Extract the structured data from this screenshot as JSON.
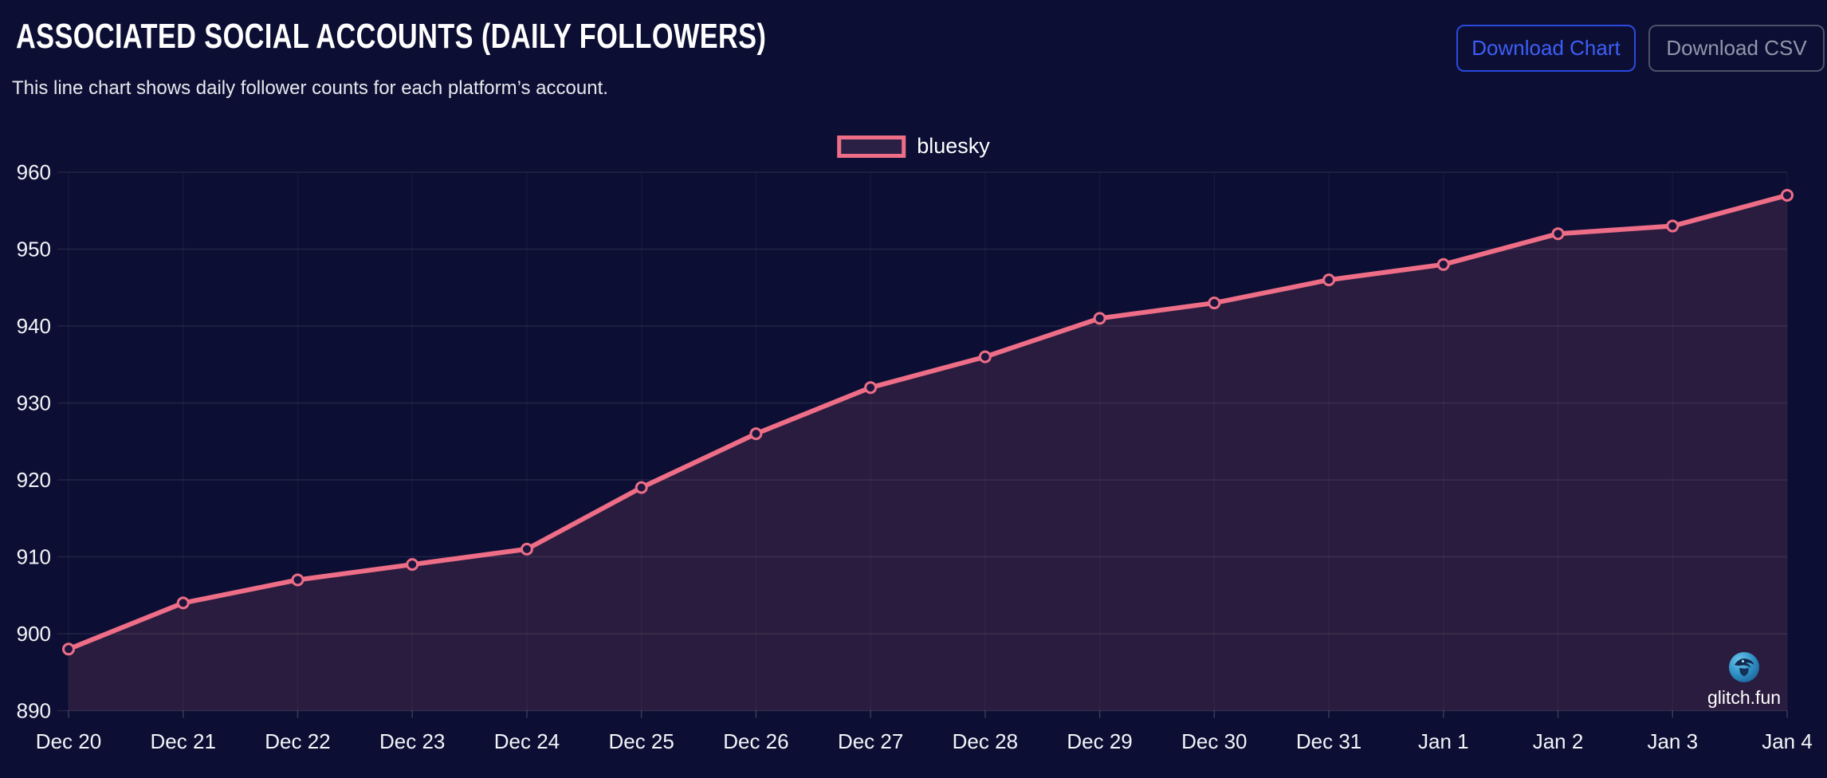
{
  "header": {
    "title": "ASSOCIATED SOCIAL ACCOUNTS (DAILY FOLLOWERS)",
    "subtitle": "This line chart shows daily follower counts for each platform’s account.",
    "buttons": {
      "download_chart": "Download Chart",
      "download_csv": "Download CSV"
    }
  },
  "legend": {
    "series_label": "bluesky"
  },
  "watermark": {
    "label": "glitch.fun"
  },
  "colors": {
    "background": "#0c0f33",
    "line": "#ee6d87",
    "area_fill": "rgba(238,109,135,0.135)",
    "marker_fill": "#1c163e",
    "grid_horizontal": "rgba(255,255,255,0.09)",
    "grid_vertical": "rgba(255,255,255,0.04)",
    "axis_text": "#f3f4f8",
    "accent_blue": "#3d5ef5",
    "muted_grey": "#9097ab"
  },
  "chart_data": {
    "type": "line",
    "title": "ASSOCIATED SOCIAL ACCOUNTS (DAILY FOLLOWERS)",
    "categories": [
      "Dec 20",
      "Dec 21",
      "Dec 22",
      "Dec 23",
      "Dec 24",
      "Dec 25",
      "Dec 26",
      "Dec 27",
      "Dec 28",
      "Dec 29",
      "Dec 30",
      "Dec 31",
      "Jan 1",
      "Jan 2",
      "Jan 3",
      "Jan 4"
    ],
    "series": [
      {
        "name": "bluesky",
        "color": "#ee6d87",
        "values": [
          898,
          904,
          907,
          909,
          911,
          919,
          926,
          932,
          936,
          941,
          943,
          946,
          948,
          952,
          953,
          957
        ]
      }
    ],
    "xlabel": "",
    "ylabel": "",
    "ylim": [
      890,
      960
    ],
    "ytick_step": 10,
    "grid": true,
    "legend_position": "top-center",
    "marker": "open-circle"
  }
}
